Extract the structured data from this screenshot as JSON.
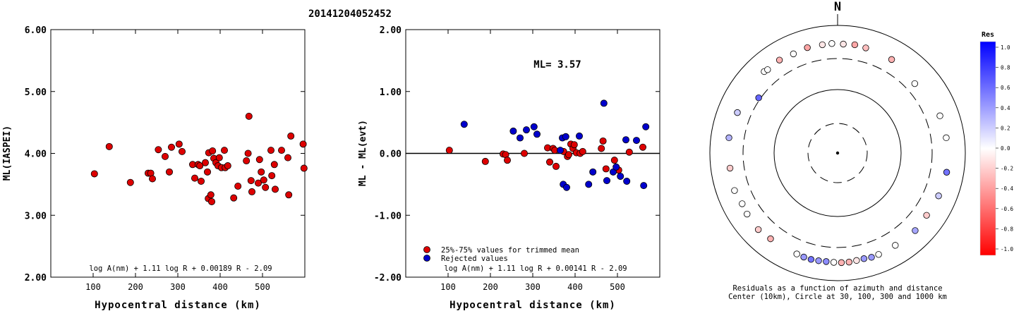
{
  "title": "20141204052452",
  "colors": {
    "red": "#dd0000",
    "blue": "#0000cc",
    "axis": "#000000"
  },
  "chart_data": [
    {
      "type": "scatter",
      "name": "ml-vs-distance",
      "xlabel": "Hypocentral distance (km)",
      "ylabel": "ML(IASPEI)",
      "xlim": [
        0,
        600
      ],
      "ylim": [
        2.0,
        6.0
      ],
      "xticks": [
        100,
        200,
        300,
        400,
        500
      ],
      "yticks": [
        2.0,
        3.0,
        4.0,
        5.0,
        6.0
      ],
      "ytick_labels": [
        "2.00",
        "3.00",
        "4.00",
        "5.00",
        "6.00"
      ],
      "formula": "log A(nm) + 1.11 log R + 0.00189 R - 2.09",
      "points": [
        [
          103,
          3.67
        ],
        [
          138,
          4.11
        ],
        [
          188,
          3.53
        ],
        [
          230,
          3.68
        ],
        [
          236,
          3.68
        ],
        [
          240,
          3.59
        ],
        [
          254,
          4.06
        ],
        [
          270,
          3.95
        ],
        [
          280,
          3.7
        ],
        [
          285,
          4.1
        ],
        [
          303,
          4.15
        ],
        [
          310,
          4.03
        ],
        [
          335,
          3.82
        ],
        [
          340,
          3.6
        ],
        [
          348,
          3.82
        ],
        [
          352,
          3.8
        ],
        [
          355,
          3.55
        ],
        [
          365,
          3.85
        ],
        [
          370,
          3.7
        ],
        [
          372,
          3.27
        ],
        [
          373,
          4.01
        ],
        [
          378,
          3.33
        ],
        [
          380,
          3.22
        ],
        [
          382,
          4.04
        ],
        [
          385,
          3.92
        ],
        [
          390,
          3.85
        ],
        [
          395,
          3.8
        ],
        [
          398,
          3.93
        ],
        [
          403,
          3.77
        ],
        [
          410,
          4.05
        ],
        [
          412,
          3.77
        ],
        [
          418,
          3.8
        ],
        [
          432,
          3.28
        ],
        [
          442,
          3.47
        ],
        [
          462,
          3.88
        ],
        [
          466,
          4.0
        ],
        [
          468,
          4.6
        ],
        [
          473,
          3.56
        ],
        [
          475,
          3.38
        ],
        [
          490,
          3.52
        ],
        [
          493,
          3.9
        ],
        [
          497,
          3.7
        ],
        [
          503,
          3.57
        ],
        [
          507,
          3.45
        ],
        [
          520,
          4.05
        ],
        [
          522,
          3.64
        ],
        [
          528,
          3.82
        ],
        [
          530,
          3.42
        ],
        [
          545,
          4.05
        ],
        [
          560,
          3.93
        ],
        [
          562,
          3.33
        ],
        [
          567,
          4.28
        ],
        [
          596,
          4.15
        ],
        [
          598,
          3.76
        ]
      ]
    },
    {
      "type": "scatter",
      "name": "residual-vs-distance",
      "xlabel": "Hypocentral distance (km)",
      "ylabel": "ML - ML(evt)",
      "xlim": [
        0,
        600
      ],
      "ylim": [
        -2.0,
        2.0
      ],
      "xticks": [
        100,
        200,
        300,
        400,
        500
      ],
      "yticks": [
        -2.0,
        -1.0,
        0.0,
        1.0,
        2.0
      ],
      "ytick_labels": [
        "-2.00",
        "-1.00",
        "0.00",
        "1.00",
        "2.00"
      ],
      "annotation": "ML= 3.57",
      "formula": "log A(nm) + 1.11 log R + 0.00141 R - 2.09",
      "legend": [
        "25%-75% values for trimmed mean",
        "Rejected values"
      ],
      "trimmed_points": [
        [
          103,
          0.05
        ],
        [
          188,
          -0.13
        ],
        [
          230,
          -0.01
        ],
        [
          236,
          -0.02
        ],
        [
          240,
          -0.11
        ],
        [
          280,
          0.0
        ],
        [
          335,
          0.09
        ],
        [
          340,
          -0.14
        ],
        [
          348,
          0.08
        ],
        [
          352,
          0.05
        ],
        [
          355,
          -0.21
        ],
        [
          373,
          0.03
        ],
        [
          382,
          -0.05
        ],
        [
          385,
          -0.02
        ],
        [
          390,
          0.15
        ],
        [
          395,
          0.08
        ],
        [
          398,
          0.14
        ],
        [
          403,
          0.01
        ],
        [
          412,
          0.0
        ],
        [
          418,
          0.03
        ],
        [
          462,
          0.08
        ],
        [
          466,
          0.2
        ],
        [
          473,
          -0.25
        ],
        [
          493,
          -0.11
        ],
        [
          503,
          -0.27
        ],
        [
          528,
          0.02
        ],
        [
          560,
          0.1
        ]
      ],
      "rejected_points": [
        [
          138,
          0.47
        ],
        [
          254,
          0.36
        ],
        [
          270,
          0.25
        ],
        [
          285,
          0.38
        ],
        [
          303,
          0.43
        ],
        [
          310,
          0.31
        ],
        [
          365,
          0.05
        ],
        [
          370,
          0.25
        ],
        [
          372,
          -0.5
        ],
        [
          378,
          0.27
        ],
        [
          380,
          -0.55
        ],
        [
          410,
          0.28
        ],
        [
          432,
          -0.5
        ],
        [
          442,
          -0.3
        ],
        [
          468,
          0.81
        ],
        [
          475,
          -0.44
        ],
        [
          490,
          -0.3
        ],
        [
          497,
          -0.22
        ],
        [
          507,
          -0.37
        ],
        [
          520,
          0.22
        ],
        [
          522,
          -0.45
        ],
        [
          545,
          0.21
        ],
        [
          562,
          -0.52
        ],
        [
          567,
          0.43
        ]
      ]
    },
    {
      "type": "scatter",
      "name": "azimuth-distance-residuals",
      "north_label": "N",
      "caption_line1": "Residuals as a function of azimuth and distance",
      "caption_line2": "Center (10km), Circle at 30, 100, 300 and 1000 km",
      "colorbar_title": "Res",
      "colorbar_range": [
        -1.0,
        1.0
      ],
      "colorbar_tick_labels": [
        "1.0",
        "0.8",
        "0.6",
        "0.4",
        "0.2",
        "0.0",
        "-0.2",
        "-0.4",
        "-0.6",
        "-0.8",
        "-1.0"
      ],
      "circles_km": [
        30,
        100,
        300,
        1000
      ],
      "stations": [
        [
          3,
          510,
          -0.1
        ],
        [
          9,
          520,
          -0.35
        ],
        [
          15,
          505,
          -0.25
        ],
        [
          30,
          490,
          -0.3
        ],
        [
          48,
          420,
          0.0
        ],
        [
          70,
          505,
          0.0
        ],
        [
          82,
          520,
          0.0
        ],
        [
          100,
          540,
          0.55
        ],
        [
          113,
          520,
          0.2
        ],
        [
          125,
          500,
          -0.2
        ],
        [
          135,
          520,
          0.35
        ],
        [
          148,
          505,
          0.0
        ],
        [
          158,
          515,
          0.0
        ],
        [
          162,
          520,
          0.4
        ],
        [
          166,
          505,
          0.4
        ],
        [
          170,
          510,
          -0.1
        ],
        [
          174,
          520,
          -0.3
        ],
        [
          178,
          520,
          -0.3
        ],
        [
          182,
          515,
          0.0
        ],
        [
          186,
          510,
          0.45
        ],
        [
          190,
          515,
          0.4
        ],
        [
          194,
          520,
          0.55
        ],
        [
          198,
          515,
          0.4
        ],
        [
          202,
          505,
          0.0
        ],
        [
          218,
          505,
          -0.3
        ],
        [
          226,
          530,
          -0.2
        ],
        [
          236,
          510,
          0.0
        ],
        [
          242,
          490,
          0.0
        ],
        [
          250,
          520,
          0.0
        ],
        [
          262,
          500,
          -0.2
        ],
        [
          278,
          520,
          0.3
        ],
        [
          292,
          490,
          0.2
        ],
        [
          305,
          320,
          0.6
        ],
        [
          318,
          520,
          0.0
        ],
        [
          320,
          505,
          0.0
        ],
        [
          328,
          520,
          -0.3
        ],
        [
          336,
          500,
          0.0
        ],
        [
          344,
          520,
          -0.35
        ],
        [
          352,
          515,
          -0.1
        ],
        [
          357,
          520,
          0.0
        ]
      ]
    }
  ]
}
